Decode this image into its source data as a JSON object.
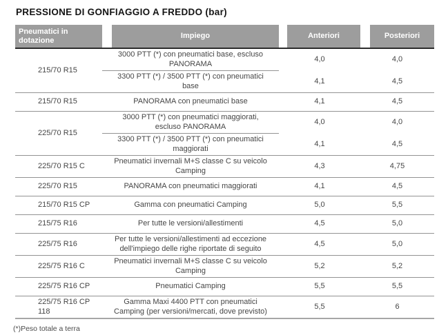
{
  "page": {
    "title": "PRESSIONE DI GONFIAGGIO A FREDDO (bar)",
    "footnote": "(*)Peso totale a terra"
  },
  "table": {
    "columns": [
      "Pneumatici in dotazione",
      "Impiego",
      "Anteriori",
      "Posteriori"
    ],
    "header_bg": "#9d9d9d",
    "header_text_color": "#ffffff",
    "groups": [
      {
        "tyre": "215/70 R15",
        "rows": [
          {
            "impiego": "3000 PTT (*) con pneumatici base, escluso PANORAMA",
            "anteriori": "4,0",
            "posteriori": "4,0"
          },
          {
            "impiego": "3300 PTT (*) / 3500 PTT (*) con pneumatici base",
            "anteriori": "4,1",
            "posteriori": "4,5"
          }
        ]
      },
      {
        "tyre": "215/70 R15",
        "rows": [
          {
            "impiego": "PANORAMA con pneumatici base",
            "anteriori": "4,1",
            "posteriori": "4,5"
          }
        ]
      },
      {
        "tyre": "225/70 R15",
        "rows": [
          {
            "impiego": "3000 PTT (*) con pneumatici maggiorati, escluso PANORAMA",
            "anteriori": "4,0",
            "posteriori": "4,0"
          },
          {
            "impiego": "3300 PTT (*) / 3500 PTT (*) con pneumatici maggiorati",
            "anteriori": "4,1",
            "posteriori": "4,5"
          }
        ]
      },
      {
        "tyre": "225/70 R15 C",
        "rows": [
          {
            "impiego": "Pneumatici invernali M+S classe C su veicolo Camping",
            "anteriori": "4,3",
            "posteriori": "4,75"
          }
        ]
      },
      {
        "tyre": "225/70 R15",
        "rows": [
          {
            "impiego": "PANORAMA con pneumatici maggiorati",
            "anteriori": "4,1",
            "posteriori": "4,5"
          }
        ]
      },
      {
        "tyre": "215/70 R15 CP",
        "rows": [
          {
            "impiego": "Gamma con pneumatici Camping",
            "anteriori": "5,0",
            "posteriori": "5,5"
          }
        ]
      },
      {
        "tyre": "215/75 R16",
        "rows": [
          {
            "impiego": "Per tutte le versioni/allestimenti",
            "anteriori": "4,5",
            "posteriori": "5,0"
          }
        ]
      },
      {
        "tyre": "225/75 R16",
        "rows": [
          {
            "impiego": "Per tutte le versioni/allestimenti ad eccezione dell'impiego delle righe riportate di seguito",
            "anteriori": "4,5",
            "posteriori": "5,0"
          }
        ]
      },
      {
        "tyre": "225/75 R16 C",
        "rows": [
          {
            "impiego": "Pneumatici invernali M+S classe C su veicolo Camping",
            "anteriori": "5,2",
            "posteriori": "5,2"
          }
        ]
      },
      {
        "tyre": "225/75 R16 CP",
        "rows": [
          {
            "impiego": "Pneumatici Camping",
            "anteriori": "5,5",
            "posteriori": "5,5"
          }
        ]
      },
      {
        "tyre": "225/75 R16 CP 118",
        "rows": [
          {
            "impiego": "Gamma Maxi 4400 PTT con pneumatici Camping (per versioni/mercati, dove previsto)",
            "anteriori": "5,5",
            "posteriori": "6"
          }
        ]
      }
    ]
  }
}
